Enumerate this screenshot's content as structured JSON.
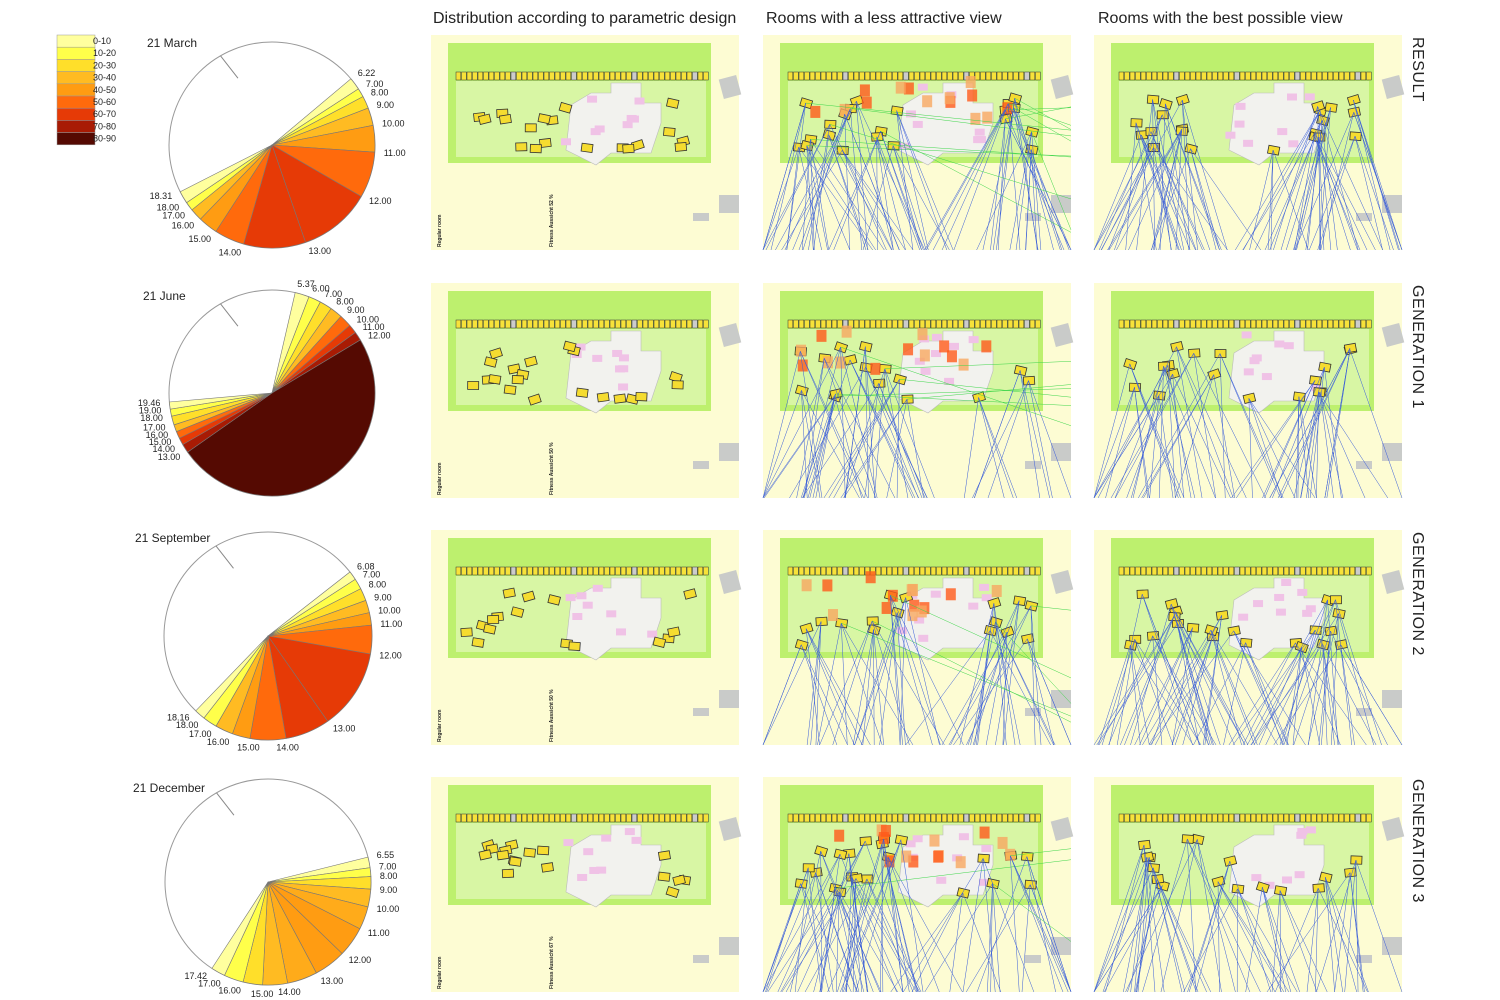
{
  "legend": {
    "items": [
      "0-10",
      "10-20",
      "20-30",
      "30-40",
      "40-50",
      "50-60",
      "60-70",
      "70-80",
      "80-90"
    ],
    "colors": [
      "#ffff9e",
      "#ffff4a",
      "#ffdf2a",
      "#ffbb22",
      "#ff9c12",
      "#ff6a0c",
      "#e63a06",
      "#a81b04",
      "#550a02"
    ]
  },
  "column_headers": [
    "Distribution according to parametric design",
    "Rooms with a less attractive view",
    "Rooms with the best possible view"
  ],
  "row_labels": [
    "RESULT",
    "GENERATION 1",
    "GENERATION 2",
    "GENERATION 3"
  ],
  "sun_diagrams": [
    {
      "date": "21 March",
      "hours": [
        "6.22",
        "7.00",
        "8.00",
        "9.00",
        "10.00",
        "11.00",
        "12.00",
        "13.00",
        "14.00",
        "15.00",
        "16.00",
        "17.00",
        "18.00",
        "18.31"
      ],
      "wedge_colors": [
        "#ffff9e",
        "#ffff4a",
        "#ffdf2a",
        "#ffbb22",
        "#ff9c12",
        "#ff6a0c",
        "#e63a06",
        "#e63a06",
        "#ff6a0c",
        "#ff9c12",
        "#ffbb22",
        "#ffff4a",
        "#ffff9e"
      ]
    },
    {
      "date": "21 June",
      "hours": [
        "5.37",
        "6.00",
        "7.00",
        "8.00",
        "9.00",
        "10.00",
        "11.00",
        "12.00",
        "13.00",
        "14.00",
        "15.00",
        "16.00",
        "17.00",
        "18.00",
        "19.00",
        "19.46"
      ],
      "wedge_colors": [
        "#ffff9e",
        "#ffff4a",
        "#ffdf2a",
        "#ffbb22",
        "#ff6a0c",
        "#e63a06",
        "#a81b04",
        "#550a02",
        "#a81b04",
        "#e63a06",
        "#ff6a0c",
        "#ffbb22",
        "#ffdf2a",
        "#ffff4a",
        "#ffff9e"
      ]
    },
    {
      "date": "21 September",
      "hours": [
        "6.08",
        "7.00",
        "8.00",
        "9.00",
        "10.00",
        "11.00",
        "12.00",
        "13.00",
        "14.00",
        "15.00",
        "16.00",
        "17.00",
        "18.00",
        "18.16"
      ],
      "wedge_colors": [
        "#ffff9e",
        "#ffff4a",
        "#ffdf2a",
        "#ffbb22",
        "#ff9c12",
        "#ff6a0c",
        "#e63a06",
        "#e63a06",
        "#ff6a0c",
        "#ff9c12",
        "#ffbb22",
        "#ffff4a",
        "#ffff9e"
      ]
    },
    {
      "date": "21 December",
      "hours": [
        "6.55",
        "7.00",
        "8.00",
        "9.00",
        "10.00",
        "11.00",
        "12.00",
        "13.00",
        "14.00",
        "15.00",
        "16.00",
        "17.00",
        "17.42"
      ],
      "wedge_colors": [
        "#ffff9e",
        "#ffff4a",
        "#ffdf2a",
        "#ffbb22",
        "#ffab1a",
        "#ff9c12",
        "#ff9c12",
        "#ffab1a",
        "#ffbb22",
        "#ffdf2a",
        "#ffff4a",
        "#ffff9e"
      ]
    }
  ],
  "plan_notes": [
    {
      "room": "Regular room",
      "fitness": "Fitness Aussicht 52 %"
    },
    {
      "room": "Regular room",
      "fitness": "Fitness Aussicht 50 %"
    },
    {
      "room": "Regular room",
      "fitness": "Fitness Aussicht 50 %"
    },
    {
      "room": "Regular room",
      "fitness": "Fitness Aussicht 67 %"
    }
  ]
}
